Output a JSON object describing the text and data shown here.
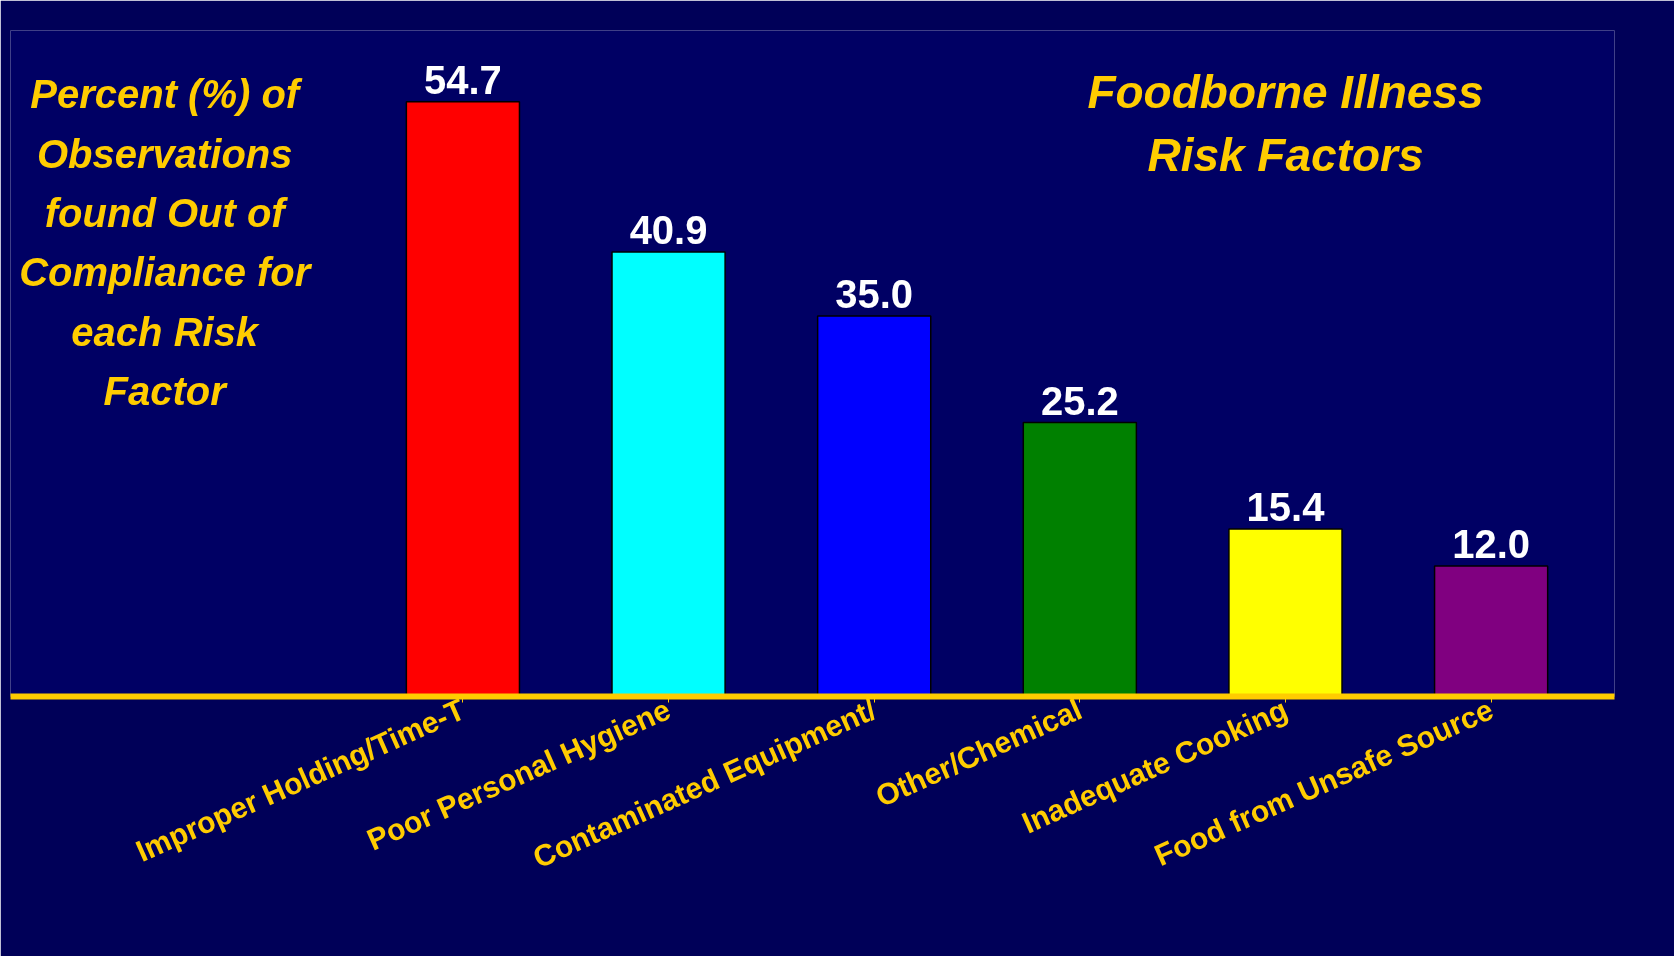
{
  "chart_data": {
    "type": "bar",
    "title": "Foodborne Illness Risk Factors",
    "ylabel": "Percent (%) of Observations found Out of Compliance for each Risk Factor",
    "categories": [
      "Improper Holding/Time-T",
      "Poor Personal Hygiene",
      "Contaminated Equipment/",
      "Other/Chemical",
      "Inadequate Cooking",
      "Food from Unsafe Source"
    ],
    "values": [
      54.7,
      40.9,
      35.0,
      25.2,
      15.4,
      12.0
    ],
    "colors": [
      "#ff0000",
      "#00ffff",
      "#0000ff",
      "#008000",
      "#ffff00",
      "#800080"
    ],
    "value_labels": [
      "54.7",
      "40.9",
      "35.0",
      "25.2",
      "15.4",
      "12.0"
    ],
    "grid": false
  }
}
